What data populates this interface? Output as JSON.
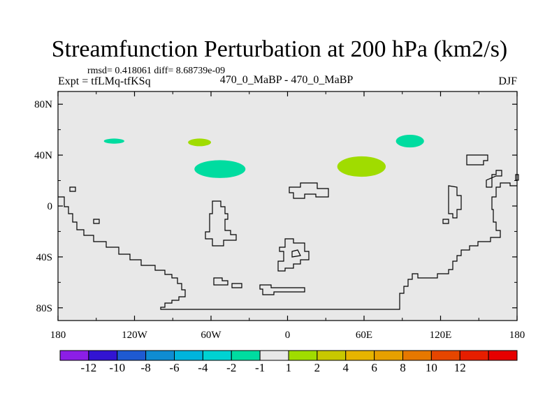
{
  "chart_data": {
    "type": "heatmap",
    "title": "Streamfunction Perturbation at 200 hPa (km2/s)",
    "stats_text": "rmsd= 0.418061 diff= 8.68739e-09",
    "experiment_label": "Expt = tfLMq-tfKSq",
    "center_label": "470_0_MaBP - 470_0_MaBP",
    "season": "DJF",
    "xlim": [
      -180,
      180
    ],
    "ylim": [
      -90,
      90
    ],
    "x_ticks": [
      {
        "value": -180,
        "label": "180"
      },
      {
        "value": -120,
        "label": "120W"
      },
      {
        "value": -60,
        "label": "60W"
      },
      {
        "value": 0,
        "label": "0"
      },
      {
        "value": 60,
        "label": "60E"
      },
      {
        "value": 120,
        "label": "120E"
      },
      {
        "value": 180,
        "label": "180"
      }
    ],
    "y_ticks": [
      {
        "value": 80,
        "label": "80N"
      },
      {
        "value": 40,
        "label": "40N"
      },
      {
        "value": 0,
        "label": "0"
      },
      {
        "value": -40,
        "label": "40S"
      },
      {
        "value": -80,
        "label": "80S"
      }
    ],
    "background_color": "#e8e8e8",
    "colorbar": {
      "colors": [
        "#8c1ee6",
        "#3214d2",
        "#1e5ad2",
        "#0f8cd2",
        "#00b4dc",
        "#00d2d2",
        "#00dca0",
        "#e8e8e8",
        "#a0dc00",
        "#c8c800",
        "#e6b400",
        "#e6a000",
        "#e67800",
        "#e64600",
        "#e61e00",
        "#e60000"
      ],
      "labels": [
        "-12",
        "-10",
        "-8",
        "-6",
        "-4",
        "-2",
        "-1",
        "1",
        "2",
        "4",
        "6",
        "8",
        "10",
        "12"
      ]
    },
    "anomalies": [
      {
        "name": "north-pacific-small",
        "lon": -136,
        "lat": 51,
        "rx": 8,
        "ry": 2,
        "color": "#00dca0"
      },
      {
        "name": "north-america-small",
        "lon": -69,
        "lat": 50,
        "rx": 9,
        "ry": 3,
        "color": "#a0dc00"
      },
      {
        "name": "atlantic-large",
        "lon": -53,
        "lat": 29,
        "rx": 20,
        "ry": 7,
        "color": "#00dca0"
      },
      {
        "name": "asia-large",
        "lon": 58,
        "lat": 31,
        "rx": 19,
        "ry": 8,
        "color": "#a0dc00"
      },
      {
        "name": "siberia-small",
        "lon": 96,
        "lat": 51,
        "rx": 11,
        "ry": 5,
        "color": "#00dca0"
      }
    ]
  }
}
